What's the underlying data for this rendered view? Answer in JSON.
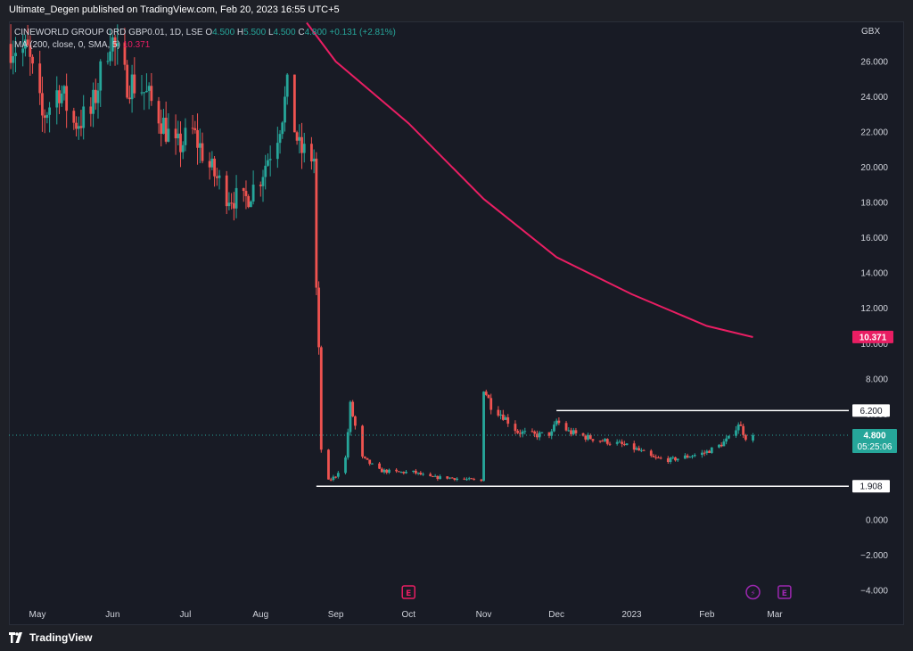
{
  "header": {
    "publish_text": "Ultimate_Degen published on TradingView.com, Feb 20, 2023 16:55 UTC+5"
  },
  "legend": {
    "symbol_line": "CINEWORLD GROUP ORD GBP0.01, 1D, LSE",
    "o_label": "O",
    "o_value": "4.500",
    "h_label": "H",
    "h_value": "5.500",
    "l_label": "L",
    "l_value": "4.500",
    "c_label": "C",
    "c_value": "4.800",
    "change": "+0.131 (+2.81%)",
    "ma_label": "MA (200, close, 0, SMA, 5)",
    "ma_value": "10.371"
  },
  "footer": {
    "brand": "TradingView"
  },
  "colors": {
    "up": "#26a69a",
    "down": "#ef5350",
    "ma": "#e91e63",
    "text": "#d1d4dc",
    "hline": "#ffffff",
    "last_price": "#26a69a",
    "events": "#e91e63",
    "dividend": "#9c27b0"
  },
  "chart_data": {
    "type": "candlestick",
    "currency": "GBX",
    "ylim": [
      -4,
      28
    ],
    "y_ticks": [
      "26.000",
      "24.000",
      "22.000",
      "20.000",
      "18.000",
      "16.000",
      "14.000",
      "12.000",
      "10.000",
      "8.000",
      "6.000",
      "4.000",
      "2.000",
      "0.000",
      "−2.000",
      "−4.000"
    ],
    "y_tick_values": [
      26,
      24,
      22,
      20,
      18,
      16,
      14,
      12,
      10,
      8,
      6,
      4,
      2,
      0,
      -2,
      -4
    ],
    "x_labels": [
      "May",
      "Jun",
      "Jul",
      "Aug",
      "Sep",
      "Oct",
      "Nov",
      "Dec",
      "2023",
      "Feb",
      "Mar"
    ],
    "x_label_dates": [
      "2022-05-01",
      "2022-06-01",
      "2022-07-01",
      "2022-08-01",
      "2022-09-01",
      "2022-10-01",
      "2022-11-01",
      "2022-12-01",
      "2023-01-01",
      "2023-02-01",
      "2023-03-01"
    ],
    "date_range": [
      "2022-04-20",
      "2023-03-10"
    ],
    "ma": {
      "name": "MA (200, close, 0, SMA, 5)",
      "points": [
        [
          "2022-08-20",
          28.2
        ],
        [
          "2022-09-01",
          26.0
        ],
        [
          "2022-10-01",
          22.5
        ],
        [
          "2022-11-01",
          18.2
        ],
        [
          "2022-12-01",
          14.9
        ],
        [
          "2023-01-01",
          12.8
        ],
        [
          "2023-02-01",
          11.0
        ],
        [
          "2023-02-20",
          10.37
        ]
      ]
    },
    "hlines": [
      {
        "value": 6.2,
        "label": "6.200",
        "from": "2022-12-01"
      },
      {
        "value": 1.908,
        "label": "1.908",
        "from": "2022-08-24"
      }
    ],
    "last_price": {
      "label": "4.800",
      "countdown": "05:25:06",
      "value": 4.8
    },
    "ma_badge": {
      "label": "10.371",
      "value": 10.371
    },
    "events": [
      {
        "date": "2022-10-01",
        "type": "earnings",
        "glyph": "E"
      },
      {
        "date": "2023-02-20",
        "type": "split",
        "glyph": "⚡"
      },
      {
        "date": "2023-03-05",
        "type": "earnings",
        "glyph": "E"
      }
    ],
    "path": [
      [
        "2022-04-20",
        27.0
      ],
      [
        "2022-04-27",
        26.5
      ],
      [
        "2022-05-03",
        22.8
      ],
      [
        "2022-05-10",
        24.5
      ],
      [
        "2022-05-16",
        22.5
      ],
      [
        "2022-05-23",
        23.0
      ],
      [
        "2022-05-31",
        27.5
      ],
      [
        "2022-06-06",
        25.0
      ],
      [
        "2022-06-13",
        24.5
      ],
      [
        "2022-06-20",
        23.0
      ],
      [
        "2022-06-27",
        21.0
      ],
      [
        "2022-07-04",
        22.0
      ],
      [
        "2022-07-11",
        20.0
      ],
      [
        "2022-07-18",
        18.5
      ],
      [
        "2022-07-25",
        18.0
      ],
      [
        "2022-08-01",
        19.5
      ],
      [
        "2022-08-08",
        22.0
      ],
      [
        "2022-08-12",
        24.3
      ],
      [
        "2022-08-17",
        21.0
      ],
      [
        "2022-08-23",
        20.5
      ],
      [
        "2022-08-24",
        13.0
      ],
      [
        "2022-08-25",
        9.5
      ],
      [
        "2022-08-26",
        4.0
      ],
      [
        "2022-08-29",
        2.2
      ],
      [
        "2022-09-01",
        2.5
      ],
      [
        "2022-09-05",
        3.5
      ],
      [
        "2022-09-07",
        6.5
      ],
      [
        "2022-09-12",
        3.5
      ],
      [
        "2022-09-19",
        2.8
      ],
      [
        "2022-09-26",
        2.7
      ],
      [
        "2022-10-03",
        2.7
      ],
      [
        "2022-10-10",
        2.4
      ],
      [
        "2022-10-17",
        2.4
      ],
      [
        "2022-10-24",
        2.3
      ],
      [
        "2022-10-31",
        2.2
      ],
      [
        "2022-11-01",
        7.5
      ],
      [
        "2022-11-04",
        6.5
      ],
      [
        "2022-11-09",
        5.9
      ],
      [
        "2022-11-15",
        5.0
      ],
      [
        "2022-11-22",
        4.8
      ],
      [
        "2022-11-29",
        4.9
      ],
      [
        "2022-12-01",
        5.6
      ],
      [
        "2022-12-06",
        5.0
      ],
      [
        "2022-12-13",
        4.7
      ],
      [
        "2022-12-20",
        4.5
      ],
      [
        "2022-12-27",
        4.3
      ],
      [
        "2023-01-03",
        4.0
      ],
      [
        "2023-01-10",
        3.5
      ],
      [
        "2023-01-17",
        3.4
      ],
      [
        "2023-01-24",
        3.6
      ],
      [
        "2023-01-31",
        3.8
      ],
      [
        "2023-02-06",
        4.2
      ],
      [
        "2023-02-10",
        4.6
      ],
      [
        "2023-02-14",
        5.5
      ],
      [
        "2023-02-17",
        4.7
      ],
      [
        "2023-02-20",
        4.8
      ]
    ]
  }
}
